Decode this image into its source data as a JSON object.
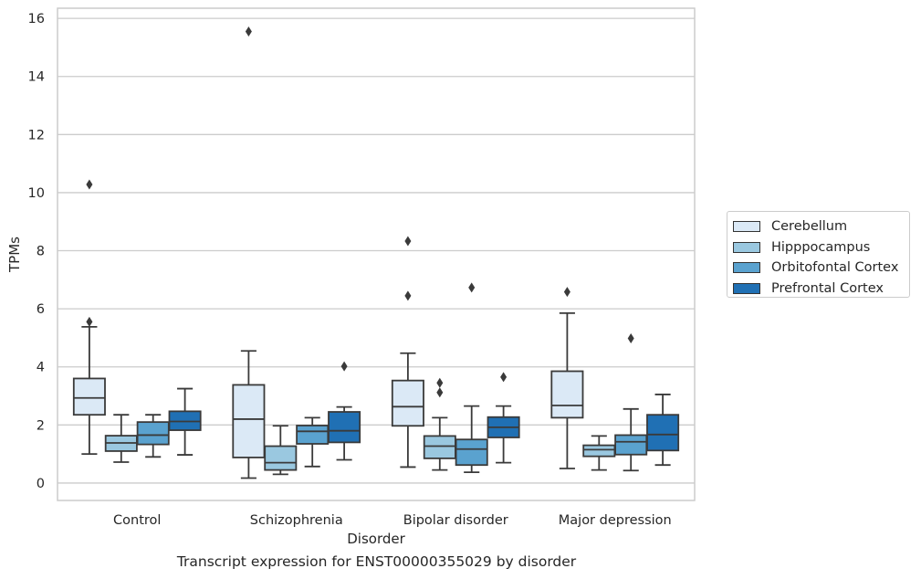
{
  "caption": "Transcript expression for ENST00000355029 by disorder",
  "colors": {
    "series": [
      "#dbe9f6",
      "#9ac8e0",
      "#5aa2cf",
      "#2070b4"
    ],
    "grid": "#cccccc",
    "line": "#3a3a3a"
  },
  "chart_data": {
    "type": "box",
    "xlabel": "Disorder",
    "ylabel": "TPMs",
    "ylim": [
      -0.6,
      16.35
    ],
    "yticks": [
      0,
      2,
      4,
      6,
      8,
      10,
      12,
      14,
      16
    ],
    "grid": true,
    "legend_position": "right",
    "categories": [
      "Control",
      "Schizophrenia",
      "Bipolar disorder",
      "Major depression"
    ],
    "series": [
      {
        "name": "Cerebellum",
        "boxes": [
          {
            "q1": 2.35,
            "median": 2.93,
            "q3": 3.6,
            "whisker_low": 1.0,
            "whisker_high": 5.38,
            "outliers": [
              5.55,
              10.28
            ]
          },
          {
            "q1": 0.88,
            "median": 2.2,
            "q3": 3.38,
            "whisker_low": 0.17,
            "whisker_high": 4.55,
            "outliers": [
              15.55
            ]
          },
          {
            "q1": 1.97,
            "median": 2.63,
            "q3": 3.53,
            "whisker_low": 0.55,
            "whisker_high": 4.47,
            "outliers": [
              6.45,
              8.33
            ]
          },
          {
            "q1": 2.25,
            "median": 2.67,
            "q3": 3.85,
            "whisker_low": 0.5,
            "whisker_high": 5.85,
            "outliers": [
              6.58
            ]
          }
        ]
      },
      {
        "name": "Hipppocampus",
        "boxes": [
          {
            "q1": 1.1,
            "median": 1.38,
            "q3": 1.63,
            "whisker_low": 0.72,
            "whisker_high": 2.35,
            "outliers": []
          },
          {
            "q1": 0.45,
            "median": 0.7,
            "q3": 1.27,
            "whisker_low": 0.3,
            "whisker_high": 1.97,
            "outliers": []
          },
          {
            "q1": 0.85,
            "median": 1.27,
            "q3": 1.62,
            "whisker_low": 0.45,
            "whisker_high": 2.25,
            "outliers": [
              3.12,
              3.45
            ]
          },
          {
            "q1": 0.92,
            "median": 1.15,
            "q3": 1.3,
            "whisker_low": 0.45,
            "whisker_high": 1.62,
            "outliers": []
          }
        ]
      },
      {
        "name": "Orbitofontal Cortex",
        "boxes": [
          {
            "q1": 1.33,
            "median": 1.65,
            "q3": 2.1,
            "whisker_low": 0.9,
            "whisker_high": 2.35,
            "outliers": []
          },
          {
            "q1": 1.35,
            "median": 1.78,
            "q3": 1.98,
            "whisker_low": 0.57,
            "whisker_high": 2.25,
            "outliers": []
          },
          {
            "q1": 0.62,
            "median": 1.17,
            "q3": 1.5,
            "whisker_low": 0.37,
            "whisker_high": 2.65,
            "outliers": [
              6.73
            ]
          },
          {
            "q1": 0.98,
            "median": 1.42,
            "q3": 1.65,
            "whisker_low": 0.43,
            "whisker_high": 2.55,
            "outliers": [
              4.98
            ]
          }
        ]
      },
      {
        "name": "Prefrontal Cortex",
        "boxes": [
          {
            "q1": 1.82,
            "median": 2.12,
            "q3": 2.47,
            "whisker_low": 0.97,
            "whisker_high": 3.25,
            "outliers": []
          },
          {
            "q1": 1.4,
            "median": 1.8,
            "q3": 2.45,
            "whisker_low": 0.8,
            "whisker_high": 2.62,
            "outliers": [
              4.02
            ]
          },
          {
            "q1": 1.57,
            "median": 1.92,
            "q3": 2.27,
            "whisker_low": 0.7,
            "whisker_high": 2.65,
            "outliers": [
              3.65
            ]
          },
          {
            "q1": 1.12,
            "median": 1.67,
            "q3": 2.35,
            "whisker_low": 0.62,
            "whisker_high": 3.05,
            "outliers": []
          }
        ]
      }
    ]
  }
}
